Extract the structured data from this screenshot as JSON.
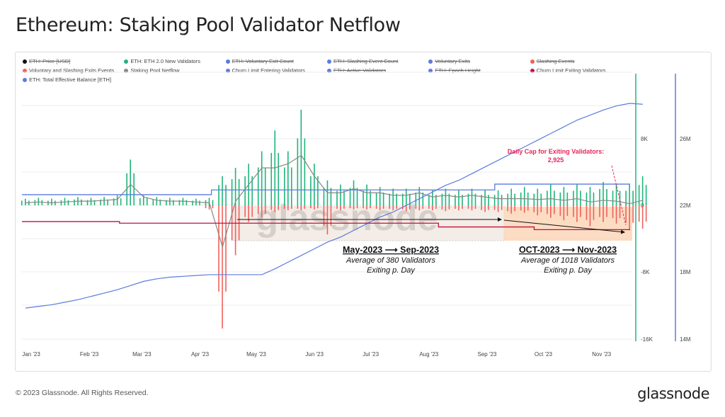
{
  "title": "Ethereum: Staking Pool Validator Netflow",
  "footer": {
    "copyright": "© 2023 Glassnode. All Rights Reserved.",
    "logo": "glassnode"
  },
  "legend": [
    {
      "label": "ETH: Price [USD]",
      "color": "#111111",
      "enabled": false
    },
    {
      "label": "ETH: ETH 2.0 New Validators",
      "color": "#1fb57a",
      "enabled": true
    },
    {
      "label": "ETH: Voluntary Exit Count",
      "color": "#5b7be0",
      "enabled": false
    },
    {
      "label": "ETH: Slashing Event Count",
      "color": "#5b7be0",
      "enabled": false
    },
    {
      "label": "Voluntary Exits",
      "color": "#5b7be0",
      "enabled": false
    },
    {
      "label": "Slashing Events",
      "color": "#f0605a",
      "enabled": false
    },
    {
      "label": "Voluntary and Slashing Exits Events",
      "color": "#f0605a",
      "enabled": true
    },
    {
      "label": "Staking Pool Netflow",
      "color": "#888888",
      "enabled": true
    },
    {
      "label": "Churn Limit Entering Validators",
      "color": "#5b7be0",
      "enabled": true
    },
    {
      "label": "ETH: Active Validators",
      "color": "#5b7be0",
      "enabled": false
    },
    {
      "label": "ETH: Epoch Height",
      "color": "#5b7be0",
      "enabled": false
    },
    {
      "label": "Churn Limit Exiting Validators",
      "color": "#c0103f",
      "enabled": true
    },
    {
      "label": "ETH: Total Effective Balance [ETH]",
      "color": "#5b7be0",
      "enabled": true
    }
  ],
  "annotations": {
    "cap_title": "Daily Cap for Exiting Validators:",
    "cap_value": "2,925",
    "p1_range": "May-2023 ⟶ Sep-2023",
    "p1_l1": "Average of 380 Validators",
    "p1_l2": "Exiting p. Day",
    "p2_range": "OCT-2023 ⟶ Nov-2023",
    "p2_l1": "Average of 1018 Validators",
    "p2_l2": "Exiting p. Day",
    "watermark": "glassnode"
  },
  "chart_data": {
    "type": "bar",
    "title": "Ethereum: Staking Pool Validator Netflow",
    "x_start": "2023-01-01",
    "x_step_days": 7,
    "xticks": [
      "Jan '23",
      "Feb '23",
      "Mar '23",
      "Apr '23",
      "May '23",
      "Jun '23",
      "Jul '23",
      "Aug '23",
      "Sep '23",
      "Oct '23",
      "Nov '23"
    ],
    "y_left": {
      "ticks": [
        "8K",
        "0",
        "-8K",
        "-16K"
      ],
      "range": [
        -16000,
        16000
      ]
    },
    "y_right": {
      "ticks": [
        "26M",
        "22M",
        "18M",
        "14M"
      ],
      "range": [
        14000000,
        30000000
      ]
    },
    "series": [
      {
        "name": "ETH: ETH 2.0 New Validators",
        "kind": "bar",
        "color": "#1fb57a",
        "values": [
          800,
          900,
          800,
          900,
          1000,
          900,
          1000,
          1200,
          5500,
          1200,
          1000,
          900,
          900,
          800,
          900,
          3500,
          4500,
          5000,
          6500,
          9000,
          6500,
          11500,
          5000,
          3000,
          2500,
          3000,
          2500,
          2200,
          2000,
          2000,
          2200,
          1800,
          2000,
          1800,
          2000,
          1800,
          1800,
          2000,
          2200,
          2000,
          2500,
          2200,
          2500,
          2200,
          2800,
          2500,
          2500,
          3500
        ]
      },
      {
        "name": "Voluntary and Slashing Exits Events",
        "kind": "bar",
        "color": "#f0605a",
        "values": [
          0,
          0,
          0,
          0,
          0,
          0,
          0,
          0,
          0,
          0,
          0,
          0,
          0,
          0,
          -500,
          -14800,
          -6000,
          -2000,
          -1500,
          -800,
          -600,
          -600,
          -500,
          -3500,
          -600,
          -500,
          -500,
          -600,
          -600,
          -700,
          -600,
          -600,
          -700,
          -600,
          -600,
          -800,
          -800,
          -1000,
          -900,
          -1200,
          -1500,
          -1800,
          -2000,
          -2500,
          -2000,
          -2200,
          -3000,
          -2800
        ]
      },
      {
        "name": "Staking Pool Netflow",
        "kind": "line",
        "color": "#888888",
        "values": [
          300,
          400,
          300,
          400,
          500,
          500,
          600,
          700,
          2500,
          1000,
          600,
          500,
          500,
          400,
          300,
          -5000,
          500,
          2500,
          4500,
          4500,
          5000,
          6000,
          3500,
          1500,
          1500,
          2000,
          1500,
          1500,
          1200,
          1200,
          1500,
          1000,
          1200,
          1000,
          1200,
          1000,
          800,
          800,
          800,
          700,
          800,
          600,
          800,
          400,
          600,
          500,
          200,
          600
        ]
      },
      {
        "name": "ETH: Total Effective Balance [ETH]",
        "kind": "line",
        "axis": "right",
        "color": "#5b7be0",
        "values": [
          15850000,
          15950000,
          16050000,
          16200000,
          16350000,
          16550000,
          16750000,
          16950000,
          17200000,
          17450000,
          17600000,
          17700000,
          17750000,
          17800000,
          17850000,
          17850000,
          17850000,
          17850000,
          17850000,
          18200000,
          18600000,
          19000000,
          19400000,
          19800000,
          20100000,
          20500000,
          20900000,
          21300000,
          21600000,
          22000000,
          22400000,
          22800000,
          23200000,
          23500000,
          23900000,
          24300000,
          24700000,
          25100000,
          25500000,
          25900000,
          26300000,
          26700000,
          27100000,
          27400000,
          27700000,
          27950000,
          28100000,
          28050000
        ]
      },
      {
        "name": "Churn Limit Entering Validators",
        "kind": "step",
        "color": "#5b7be0",
        "steps": [
          [
            "2023-01-01",
            1280
          ],
          [
            "2023-04-12",
            1850
          ],
          [
            "2023-09-10",
            2550
          ]
        ]
      },
      {
        "name": "Churn Limit Exiting Validators",
        "kind": "step",
        "color": "#c0103f",
        "steps": [
          [
            "2023-01-01",
            -1950
          ],
          [
            "2023-02-22",
            -2150
          ],
          [
            "2023-08-11",
            -2600
          ],
          [
            "2023-10-01",
            -2925
          ]
        ]
      }
    ]
  }
}
